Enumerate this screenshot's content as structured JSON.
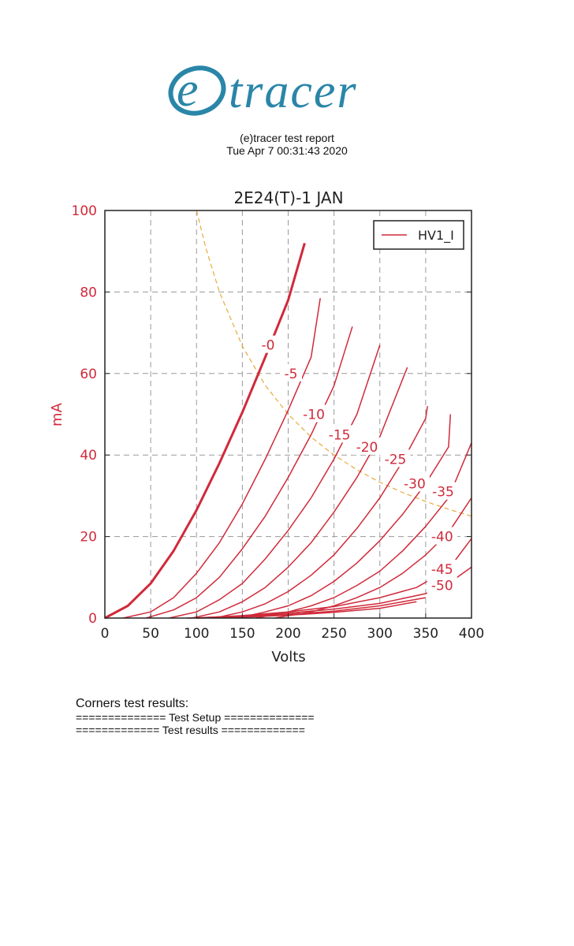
{
  "logo": {
    "text": "(e)tracer",
    "color": "#2a86a8"
  },
  "report": {
    "title": "(e)tracer test report",
    "date": "Tue Apr 7 00:31:43 2020"
  },
  "chart_data": {
    "type": "line",
    "title": "2E24(T)-1  JAN",
    "xlabel": "Volts",
    "ylabel": "mA",
    "xlim": [
      0,
      400
    ],
    "ylim": [
      0,
      100
    ],
    "xticks": [
      "0",
      "50",
      "100",
      "150",
      "200",
      "250",
      "300",
      "350",
      "400"
    ],
    "yticks": [
      "0",
      "20",
      "40",
      "60",
      "80",
      "100"
    ],
    "grid": true,
    "legend": {
      "entries": [
        "HV1_I"
      ],
      "placement": "top-right"
    },
    "line_color": "#d02a3a",
    "limit_color": "#e8b04a",
    "series": [
      {
        "label": "-0",
        "x": [
          0,
          25,
          50,
          75,
          100,
          125,
          150,
          175,
          200,
          218
        ],
        "y": [
          0,
          3,
          8.5,
          16.5,
          26.5,
          38,
          50.5,
          64,
          78,
          92
        ]
      },
      {
        "label": "-5",
        "x": [
          20,
          50,
          75,
          100,
          125,
          150,
          175,
          200,
          225,
          235
        ],
        "y": [
          0,
          1.5,
          5,
          11,
          18.5,
          28,
          39,
          51,
          64,
          78.5
        ]
      },
      {
        "label": "-10",
        "x": [
          45,
          75,
          100,
          125,
          150,
          175,
          200,
          225,
          250,
          270
        ],
        "y": [
          0,
          2,
          5,
          10,
          17,
          25,
          34.5,
          45,
          57,
          71.5
        ]
      },
      {
        "label": "-15",
        "x": [
          70,
          100,
          125,
          150,
          175,
          200,
          225,
          250,
          275,
          300
        ],
        "y": [
          0,
          1.5,
          4.5,
          8.5,
          14.5,
          21.5,
          29.5,
          39,
          50,
          67
        ]
      },
      {
        "label": "-20",
        "x": [
          95,
          125,
          150,
          175,
          200,
          225,
          250,
          275,
          300,
          330
        ],
        "y": [
          0,
          1.5,
          4,
          7.5,
          12.5,
          18.5,
          26,
          34.5,
          44.5,
          61.5
        ]
      },
      {
        "label": "-25",
        "x": [
          120,
          150,
          175,
          200,
          225,
          250,
          275,
          300,
          325,
          350,
          352
        ],
        "y": [
          0,
          1.5,
          3.5,
          6.5,
          10.5,
          15.5,
          22,
          29.5,
          38.5,
          49,
          52
        ]
      },
      {
        "label": "-30",
        "x": [
          145,
          175,
          200,
          225,
          250,
          275,
          300,
          325,
          350,
          375,
          377
        ],
        "y": [
          0,
          1.5,
          3,
          5.5,
          9,
          13.5,
          19,
          25.5,
          33,
          42,
          50
        ]
      },
      {
        "label": "-35",
        "x": [
          165,
          200,
          225,
          250,
          275,
          300,
          325,
          350,
          375,
          400
        ],
        "y": [
          0,
          1.5,
          3,
          5,
          8,
          11.5,
          16.5,
          22.5,
          29.5,
          43
        ]
      },
      {
        "label": "-40",
        "x": [
          185,
          225,
          250,
          275,
          300,
          325,
          350,
          375,
          400
        ],
        "y": [
          0,
          1.5,
          3,
          5,
          7.5,
          11,
          15.5,
          21,
          29.5
        ]
      },
      {
        "label": "-45",
        "x": [
          100,
          150,
          200,
          250,
          300,
          340,
          375,
          400
        ],
        "y": [
          0,
          0.6,
          1.5,
          2.8,
          5,
          7.5,
          12,
          19.5
        ]
      },
      {
        "label": "-50",
        "x": [
          90,
          150,
          200,
          250,
          300,
          350,
          375,
          400
        ],
        "y": [
          0,
          0.5,
          1.2,
          2.2,
          3.6,
          6,
          8.5,
          12.5
        ]
      },
      {
        "label": "",
        "x": [
          100,
          150,
          200,
          250,
          300,
          350
        ],
        "y": [
          0,
          0.3,
          0.9,
          1.7,
          3,
          5
        ]
      },
      {
        "label": "",
        "x": [
          100,
          150,
          200,
          250,
          300,
          340
        ],
        "y": [
          0,
          0.2,
          0.7,
          1.4,
          2.4,
          4
        ]
      }
    ],
    "dissipation_limit": {
      "x": [
        100,
        110,
        125,
        150,
        175,
        200,
        225,
        250,
        275,
        300,
        325,
        350,
        375,
        400
      ],
      "y": [
        100,
        90.9,
        80,
        66.7,
        57.1,
        50,
        44.4,
        40,
        36.4,
        33.3,
        30.8,
        28.6,
        26.7,
        25
      ]
    }
  },
  "results": {
    "heading": "Corners test results:",
    "setup": "============== Test Setup ==============",
    "results_line": "============= Test results ============="
  }
}
